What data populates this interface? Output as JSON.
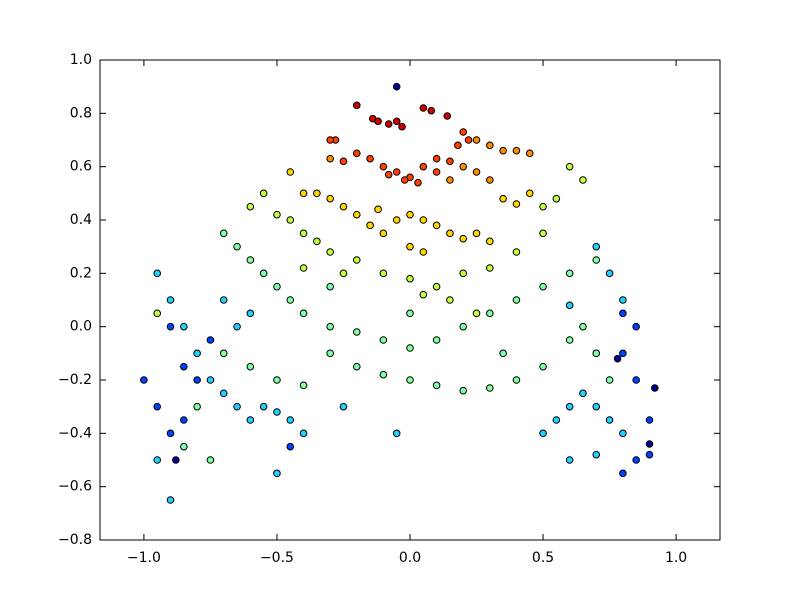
{
  "chart_data": {
    "type": "scatter",
    "xlim": [
      -1.165,
      1.165
    ],
    "ylim": [
      -0.8,
      1.0
    ],
    "xticks": [
      {
        "value": -1.0,
        "label": "−1.0"
      },
      {
        "value": -0.5,
        "label": "−0.5"
      },
      {
        "value": 0.0,
        "label": "0.0"
      },
      {
        "value": 0.5,
        "label": "0.5"
      },
      {
        "value": 1.0,
        "label": "1.0"
      }
    ],
    "yticks": [
      {
        "value": -0.8,
        "label": "−0.8"
      },
      {
        "value": -0.6,
        "label": "−0.6"
      },
      {
        "value": -0.4,
        "label": "−0.4"
      },
      {
        "value": -0.2,
        "label": "−0.2"
      },
      {
        "value": 0.0,
        "label": "0.0"
      },
      {
        "value": 0.2,
        "label": "0.2"
      },
      {
        "value": 0.4,
        "label": "0.4"
      },
      {
        "value": 0.6,
        "label": "0.6"
      },
      {
        "value": 0.8,
        "label": "0.8"
      },
      {
        "value": 1.0,
        "label": "1.0"
      }
    ],
    "series": [
      {
        "color": "#00008f",
        "x": [
          0.92,
          0.9,
          -0.88,
          0.78,
          -0.05
        ],
        "y": [
          -0.23,
          -0.44,
          -0.5,
          -0.12,
          0.9
        ]
      },
      {
        "color": "#0040ff",
        "x": [
          -1.0,
          -0.95,
          -0.9,
          -0.85,
          -0.8,
          -0.75,
          -0.85,
          0.8,
          0.85,
          0.85,
          0.9,
          0.85,
          0.8,
          0.9,
          0.8,
          -0.9,
          -0.45
        ],
        "y": [
          -0.2,
          -0.3,
          -0.4,
          -0.35,
          -0.2,
          -0.05,
          -0.15,
          -0.1,
          0.0,
          -0.2,
          -0.35,
          -0.5,
          -0.55,
          -0.48,
          0.05,
          0.0,
          -0.45
        ]
      },
      {
        "color": "#20d0ff",
        "x": [
          -0.95,
          -0.9,
          -0.85,
          -0.8,
          -0.75,
          -0.7,
          -0.65,
          -0.6,
          -0.55,
          -0.5,
          -0.45,
          -0.4,
          0.5,
          0.55,
          0.6,
          0.65,
          0.7,
          0.75,
          0.8,
          0.7,
          0.75,
          0.8,
          0.6,
          -0.6,
          -0.7,
          -0.25,
          -0.05,
          0.6,
          0.7,
          -0.5,
          -0.9,
          -0.95,
          -0.65
        ],
        "y": [
          0.2,
          0.1,
          0.0,
          -0.1,
          -0.2,
          -0.25,
          -0.3,
          -0.35,
          -0.3,
          -0.32,
          -0.35,
          -0.4,
          -0.4,
          -0.35,
          -0.3,
          -0.25,
          -0.3,
          -0.35,
          -0.4,
          0.3,
          0.2,
          0.1,
          0.08,
          0.05,
          0.1,
          -0.3,
          -0.4,
          -0.5,
          -0.48,
          -0.55,
          -0.65,
          -0.5,
          0.0
        ]
      },
      {
        "color": "#80ffa0",
        "x": [
          -0.7,
          -0.65,
          -0.6,
          -0.55,
          -0.5,
          -0.45,
          -0.4,
          -0.3,
          -0.2,
          -0.1,
          0.0,
          0.1,
          0.2,
          0.3,
          0.4,
          0.5,
          0.6,
          0.7,
          -0.3,
          -0.2,
          -0.1,
          0.0,
          0.1,
          0.2,
          0.3,
          0.4,
          0.5,
          -0.5,
          -0.4,
          -0.6,
          -0.7,
          -0.8,
          -0.75,
          -0.85,
          0.6,
          0.65,
          0.7,
          0.75,
          -0.3,
          0.0,
          0.35
        ],
        "y": [
          0.35,
          0.3,
          0.25,
          0.2,
          0.15,
          0.1,
          0.05,
          0.0,
          -0.02,
          -0.05,
          -0.08,
          -0.05,
          0.0,
          0.05,
          0.1,
          0.15,
          0.2,
          0.25,
          -0.1,
          -0.15,
          -0.18,
          -0.2,
          -0.22,
          -0.24,
          -0.23,
          -0.2,
          -0.15,
          -0.2,
          -0.22,
          -0.15,
          -0.1,
          -0.3,
          -0.5,
          -0.45,
          -0.05,
          0.0,
          -0.1,
          -0.2,
          0.15,
          0.05,
          -0.1
        ]
      },
      {
        "color": "#c0ff40",
        "x": [
          -0.55,
          -0.6,
          -0.5,
          -0.45,
          -0.4,
          -0.35,
          -0.3,
          -0.2,
          -0.1,
          0.0,
          0.1,
          0.2,
          0.3,
          0.4,
          0.5,
          0.55,
          0.5,
          0.6,
          0.65,
          -0.25,
          0.05,
          0.15,
          0.25,
          -0.4,
          -0.95
        ],
        "y": [
          0.5,
          0.45,
          0.42,
          0.4,
          0.35,
          0.32,
          0.28,
          0.25,
          0.2,
          0.18,
          0.15,
          0.2,
          0.22,
          0.28,
          0.35,
          0.48,
          0.45,
          0.6,
          0.55,
          0.2,
          0.12,
          0.1,
          0.05,
          0.22,
          0.05
        ]
      },
      {
        "color": "#ffd700",
        "x": [
          -0.4,
          -0.35,
          -0.3,
          -0.25,
          -0.2,
          -0.15,
          -0.1,
          -0.05,
          0.0,
          0.05,
          0.1,
          0.15,
          0.2,
          0.25,
          0.3,
          -0.45,
          -0.12,
          0.0,
          0.05,
          0.35,
          0.4,
          0.45
        ],
        "y": [
          0.5,
          0.5,
          0.48,
          0.45,
          0.42,
          0.38,
          0.35,
          0.4,
          0.42,
          0.4,
          0.38,
          0.35,
          0.33,
          0.35,
          0.32,
          0.58,
          0.44,
          0.3,
          0.28,
          0.48,
          0.46,
          0.5
        ]
      },
      {
        "color": "#ff8c00",
        "x": [
          0.25,
          0.3,
          0.35,
          0.4,
          0.45,
          -0.3,
          0.2,
          0.25,
          0.3,
          0.15
        ],
        "y": [
          0.7,
          0.68,
          0.66,
          0.66,
          0.65,
          0.63,
          0.6,
          0.58,
          0.55,
          0.55
        ]
      },
      {
        "color": "#ff4000",
        "x": [
          0.2,
          0.22,
          0.18,
          -0.28,
          -0.3,
          -0.2,
          -0.15,
          -0.1,
          -0.05,
          0.0,
          0.05,
          0.1,
          0.15,
          -0.25,
          -0.02,
          0.03,
          -0.08,
          0.1
        ],
        "y": [
          0.73,
          0.7,
          0.68,
          0.7,
          0.7,
          0.65,
          0.63,
          0.6,
          0.58,
          0.56,
          0.6,
          0.63,
          0.62,
          0.62,
          0.55,
          0.54,
          0.57,
          0.58
        ]
      },
      {
        "color": "#d00000",
        "x": [
          -0.2,
          -0.14,
          -0.12,
          -0.05,
          -0.03,
          0.05,
          0.08,
          0.14,
          -0.08
        ],
        "y": [
          0.83,
          0.78,
          0.77,
          0.77,
          0.75,
          0.82,
          0.81,
          0.79,
          0.76
        ]
      }
    ]
  }
}
